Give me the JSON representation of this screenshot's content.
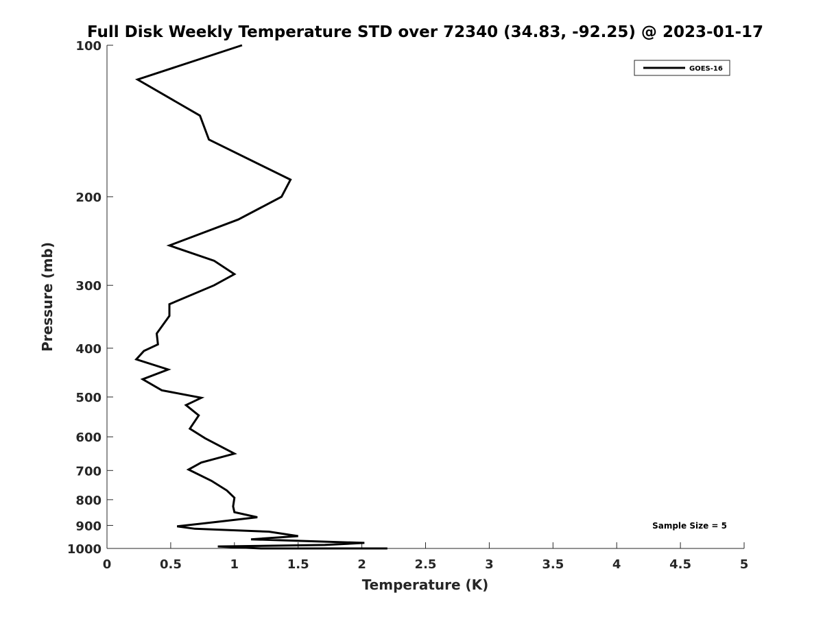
{
  "chart_data": {
    "type": "line",
    "title": "Full Disk Weekly Temperature STD over 72340 (34.83, -92.25) @ 2023-01-17",
    "xlabel": "Temperature (K)",
    "ylabel": "Pressure (mb)",
    "xlim": [
      0,
      5
    ],
    "ylim": [
      100,
      1000
    ],
    "y_scale": "log",
    "y_reversed": true,
    "grid": false,
    "x_ticks": [
      0,
      0.5,
      1,
      1.5,
      2,
      2.5,
      3,
      3.5,
      4,
      4.5,
      5
    ],
    "x_tick_labels": [
      "0",
      "0.5",
      "1",
      "1.5",
      "2",
      "2.5",
      "3",
      "3.5",
      "4",
      "4.5",
      "5"
    ],
    "y_ticks": [
      100,
      200,
      300,
      400,
      500,
      600,
      700,
      800,
      900,
      1000
    ],
    "y_tick_labels": [
      "100",
      "200",
      "300",
      "400",
      "500",
      "600",
      "700",
      "800",
      "900",
      "1000"
    ],
    "legend_position": "top-right",
    "annotation": "Sample Size = 5",
    "series": [
      {
        "name": "GOES-16",
        "color": "#000000",
        "x": [
          1.06,
          0.24,
          0.73,
          0.8,
          1.44,
          1.37,
          1.03,
          0.49,
          0.84,
          1.0,
          0.84,
          0.49,
          0.49,
          0.39,
          0.4,
          0.29,
          0.23,
          0.48,
          0.28,
          0.43,
          0.74,
          0.62,
          0.72,
          0.65,
          0.77,
          1.0,
          0.74,
          0.64,
          0.82,
          0.94,
          1.0,
          0.99,
          1.0,
          1.18,
          0.91,
          0.55,
          0.69,
          1.27,
          1.5,
          1.13,
          2.02,
          1.71,
          0.87,
          1.21,
          2.2
        ],
        "y": [
          100,
          117,
          138,
          154,
          185,
          200,
          222,
          250,
          268,
          285,
          300,
          327,
          345,
          374,
          393,
          405,
          421,
          441,
          461,
          485,
          502,
          519,
          544,
          578,
          604,
          648,
          675,
          697,
          734,
          767,
          793,
          825,
          847,
          867,
          883,
          904,
          914,
          926,
          945,
          959,
          975,
          984,
          991,
          1006,
          1002
        ]
      }
    ]
  }
}
